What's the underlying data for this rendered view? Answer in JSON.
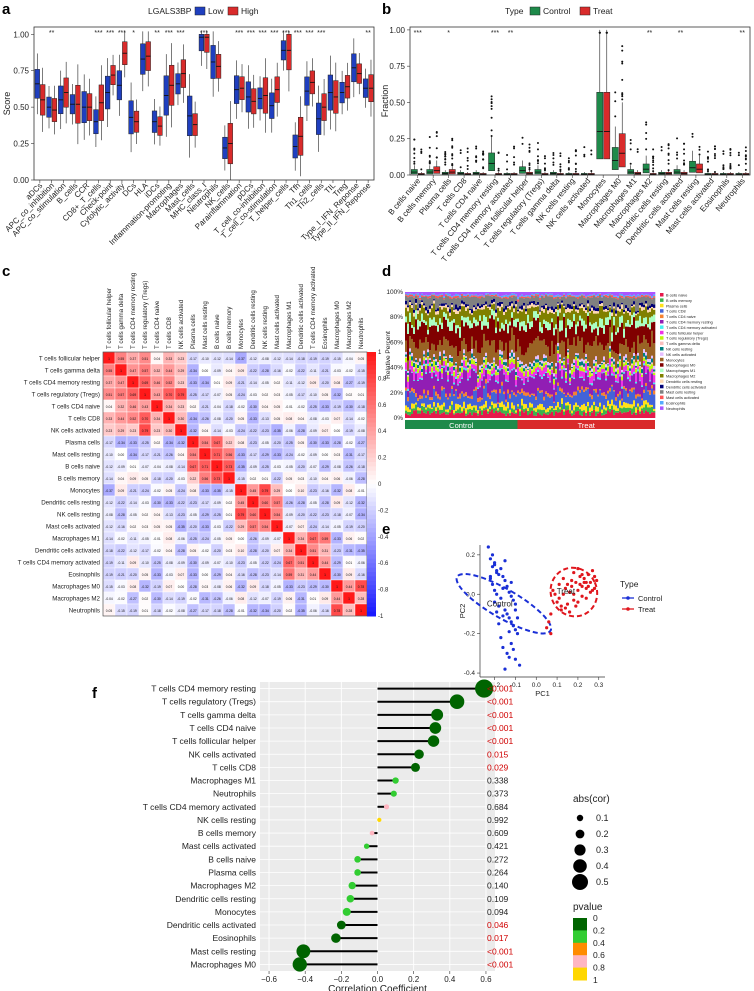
{
  "colors": {
    "low": "#1f3fbf",
    "high": "#d92b2b",
    "control": "#1e8a4a",
    "treat": "#d92b2b",
    "pca_control": "#1a2fd6",
    "pca_treat": "#e0161d",
    "stick": "#000000",
    "grid": "#ebebeb"
  },
  "panels": {
    "a": "a",
    "b": "b",
    "c": "c",
    "d": "d",
    "e": "e",
    "f": "f"
  },
  "chart_data": [
    {
      "id": "a",
      "type": "box",
      "title": "",
      "legend_title": "LGALS3BP",
      "legend": [
        "Low",
        "High"
      ],
      "ylabel": "Score",
      "ylim": [
        0,
        1.05
      ],
      "yticks": [
        "0.00",
        "0.25",
        "0.50",
        "0.75",
        "1.00"
      ],
      "ytick_values": [
        0,
        0.25,
        0.5,
        0.75,
        1.0
      ],
      "categories": [
        "aDCs",
        "APC_co_inhibition",
        "APC_co_stimulation",
        "B_cells",
        "CCR",
        "CD8+_T_cells",
        "Check-point",
        "Cytolytic_activity",
        "DCs",
        "HLA",
        "iDCs",
        "Inflammation-promoting",
        "Macrophages",
        "Mast_cells",
        "MHC_class_I",
        "Neutrophils",
        "NK_cells",
        "Parainflammation",
        "pDCs",
        "T_cell_co-inhibition",
        "T_cell_co-stimulation",
        "T_helper_cells",
        "Tfh",
        "Th1_cells",
        "Th2_cells",
        "TIL",
        "Treg",
        "Type_I_IFN_Reponse",
        "Type_II_IFN_Reponse"
      ],
      "significance": [
        "",
        "**",
        "",
        "",
        "",
        "***",
        "***",
        "***",
        "*",
        "",
        "**",
        "***",
        "***",
        "",
        "***",
        "",
        "",
        "***",
        "***",
        "***",
        "***",
        "***",
        "***",
        "***",
        "***",
        "",
        "",
        "",
        "**"
      ],
      "series": [
        {
          "name": "Low",
          "medians": [
            0.66,
            0.5,
            0.55,
            0.52,
            0.5,
            0.4,
            0.6,
            0.65,
            0.43,
            0.83,
            0.4,
            0.58,
            0.66,
            0.44,
            0.98,
            0.81,
            0.22,
            0.62,
            0.57,
            0.56,
            0.51,
            0.89,
            0.23,
            0.61,
            0.42,
            0.6,
            0.6,
            0.77,
            0.63
          ]
        },
        {
          "name": "High",
          "medians": [
            0.55,
            0.48,
            0.6,
            0.52,
            0.5,
            0.53,
            0.72,
            0.87,
            0.4,
            0.85,
            0.37,
            0.65,
            0.73,
            0.38,
            0.98,
            0.78,
            0.25,
            0.63,
            0.54,
            0.58,
            0.62,
            0.89,
            0.3,
            0.67,
            0.5,
            0.57,
            0.64,
            0.73,
            0.63
          ]
        }
      ]
    },
    {
      "id": "b",
      "type": "box",
      "legend_title": "Type",
      "legend": [
        "Control",
        "Treat"
      ],
      "ylabel": "Fraction",
      "ylim": [
        0,
        1.02
      ],
      "yticks": [
        "0.00",
        "0.25",
        "0.50",
        "0.75",
        "1.00"
      ],
      "ytick_values": [
        0,
        0.25,
        0.5,
        0.75,
        1.0
      ],
      "categories": [
        "B cells naive",
        "B cells memory",
        "Plasma cells",
        "T cells CD8",
        "T cells CD4 naive",
        "T cells CD4 memory resting",
        "T cells CD4 memory activated",
        "T cells follicular helper",
        "T cells regulatory (Tregs)",
        "T cells gamma delta",
        "NK cells resting",
        "NK cells activated",
        "Monocytes",
        "Macrophages M0",
        "Macrophages M1",
        "Macrophages M2",
        "Dendritic cells resting",
        "Dendritic cells activated",
        "Mast cells resting",
        "Mast cells activated",
        "Eosinophils",
        "Neutrophils"
      ],
      "significance": [
        "***",
        "",
        "*",
        "",
        "",
        "***",
        "**",
        "",
        "",
        "",
        "",
        "",
        "",
        "",
        "",
        "**",
        "",
        "**",
        "",
        "",
        "",
        "**"
      ],
      "series": [
        {
          "name": "Control",
          "medians": [
            0.02,
            0.02,
            0.01,
            0.01,
            0.01,
            0.08,
            0.005,
            0.03,
            0.02,
            0.01,
            0.005,
            0.005,
            0.3,
            0.1,
            0.02,
            0.04,
            0.01,
            0.02,
            0.05,
            0.005,
            0.005,
            0.005
          ]
        },
        {
          "name": "Treat",
          "medians": [
            0.005,
            0.03,
            0.02,
            0.005,
            0.005,
            0.005,
            0.005,
            0.01,
            0.005,
            0.005,
            0.005,
            0.005,
            0.3,
            0.15,
            0.01,
            0.005,
            0.01,
            0.01,
            0.04,
            0.005,
            0.005,
            0.005
          ]
        }
      ]
    },
    {
      "id": "c",
      "type": "heatmap",
      "legend_ticks": [
        "1",
        "0.8",
        "0.6",
        "0.4",
        "0.2",
        "0",
        "-0.2",
        "-0.4",
        "-0.6",
        "-0.8",
        "-1"
      ],
      "legend_values": [
        1,
        0.8,
        0.6,
        0.4,
        0.2,
        0,
        -0.2,
        -0.4,
        -0.6,
        -0.8,
        -1
      ],
      "labels": [
        "T cells follicular helper",
        "T cells gamma delta",
        "T cells CD4 memory resting",
        "T cells regulatory (Tregs)",
        "T cells CD4 naive",
        "T cells CD8",
        "NK cells activated",
        "Plasma cells",
        "Mast cells resting",
        "B cells naive",
        "B cells memory",
        "Monocytes",
        "Dendritic cells resting",
        "NK cells resting",
        "Mast cells activated",
        "Macrophages M1",
        "Dendritic cells activated",
        "T cells CD4 memory activated",
        "Eosinophils",
        "Macrophages M0",
        "Macrophages M2",
        "Neutrophils"
      ],
      "first_row": [
        "1",
        "0.55",
        "0.37",
        "0.51",
        "0.04",
        "0.33",
        "0.23",
        "-0.17",
        "-0.10",
        "-0.12",
        "-0.14",
        "-0.37",
        "-0.12",
        "-0.08",
        "-0.12",
        "-0.14",
        "-0.18",
        "-0.19",
        "-0.19",
        "-0.15",
        "-0.04",
        "0.05"
      ]
    },
    {
      "id": "d",
      "type": "stacked_bar",
      "ylabel": "Relative Percent",
      "yticks": [
        "0%",
        "20%",
        "40%",
        "60%",
        "80%",
        "100%"
      ],
      "ytick_values": [
        0,
        0.2,
        0.4,
        0.6,
        0.8,
        1.0
      ],
      "groups": [
        "Control",
        "Treat"
      ],
      "group_fraction": [
        0.45,
        0.55
      ],
      "legend": [
        "B cells naive",
        "B cells memory",
        "Plasma cells",
        "T cells CD8",
        "T cells CD4 naive",
        "T cells CD4 memory resting",
        "T cells CD4 memory activated",
        "T cells follicular helper",
        "T cells regulatory (Tregs)",
        "T cells gamma delta",
        "NK cells resting",
        "NK cells activated",
        "Monocytes",
        "Macrophages M0",
        "Macrophages M1",
        "Macrophages M2",
        "Dendritic cells resting",
        "Dendritic cells activated",
        "Mast cells resting",
        "Mast cells activated",
        "Eosinophils",
        "Neutrophils"
      ],
      "legend_colors": [
        "#e6194b",
        "#3cb44b",
        "#ffe119",
        "#4363d8",
        "#f58231",
        "#911eb4",
        "#46f0f0",
        "#f032e6",
        "#bcf60c",
        "#fabebe",
        "#008080",
        "#e6beff",
        "#9a6324",
        "#800000",
        "#aaffc3",
        "#808000",
        "#ffd8b1",
        "#000075",
        "#808080",
        "#ff5555",
        "#55aaff",
        "#aa55ff"
      ]
    },
    {
      "id": "e",
      "type": "scatter",
      "xlabel": "PC1",
      "ylabel": "PC2",
      "xlim": [
        -0.27,
        0.33
      ],
      "ylim": [
        -0.42,
        0.25
      ],
      "xticks": [
        "-0.2",
        "-0.1",
        "0.0",
        "0.1",
        "0.2",
        "0.3"
      ],
      "xtick_values": [
        -0.2,
        -0.1,
        0.0,
        0.1,
        0.2,
        0.3
      ],
      "yticks": [
        "0.2",
        "0.0",
        "-0.2",
        "-0.4"
      ],
      "ytick_values": [
        0.2,
        0.0,
        -0.2,
        -0.4
      ],
      "legend_title": "Type",
      "legend": [
        "Control",
        "Treat"
      ],
      "group_labels": [
        "Control",
        "Treat"
      ],
      "series": [
        {
          "name": "Control",
          "x": [
            -0.23,
            -0.22,
            -0.21,
            -0.2,
            -0.19,
            -0.18,
            -0.22,
            -0.21,
            -0.2,
            -0.19,
            -0.17,
            -0.16,
            -0.15,
            -0.14,
            -0.13,
            -0.12,
            -0.11,
            -0.1,
            -0.18,
            -0.17,
            -0.16,
            -0.15,
            -0.14,
            -0.13,
            -0.12,
            -0.11,
            -0.1,
            -0.09,
            -0.2,
            -0.19,
            -0.18,
            -0.17,
            -0.16,
            -0.14,
            -0.12,
            -0.1,
            -0.08,
            -0.15,
            -0.13,
            -0.11,
            -0.21,
            -0.2,
            -0.15,
            -0.12,
            -0.09,
            -0.1,
            -0.13,
            -0.16,
            -0.19,
            -0.22
          ],
          "y": [
            0.24,
            0.18,
            0.14,
            0.16,
            0.12,
            0.1,
            0.08,
            0.05,
            0.02,
            0.11,
            0.13,
            0.09,
            0.07,
            0.04,
            0.01,
            -0.01,
            -0.03,
            -0.05,
            -0.06,
            -0.02,
            0.03,
            -0.08,
            -0.1,
            -0.12,
            -0.14,
            -0.16,
            -0.18,
            -0.2,
            -0.04,
            -0.09,
            -0.15,
            -0.22,
            -0.27,
            -0.3,
            -0.25,
            -0.33,
            -0.36,
            -0.38,
            -0.32,
            -0.28,
            0.2,
            0.15,
            0.17,
            0.06,
            -0.12,
            -0.08,
            -0.19,
            -0.11,
            0.0,
            0.09
          ]
        },
        {
          "name": "Treat",
          "x": [
            0.05,
            0.07,
            0.08,
            0.1,
            0.11,
            0.12,
            0.13,
            0.14,
            0.15,
            0.16,
            0.17,
            0.18,
            0.19,
            0.2,
            0.21,
            0.22,
            0.23,
            0.24,
            0.25,
            0.26,
            0.27,
            0.28,
            0.29,
            0.12,
            0.14,
            0.16,
            0.18,
            0.2,
            0.22,
            0.24,
            0.26,
            0.15,
            0.17,
            0.19,
            0.21,
            0.23,
            0.25,
            0.27,
            0.06,
            0.07,
            0.09,
            0.11,
            0.13,
            0.18,
            0.2,
            0.22,
            0.24,
            0.28
          ],
          "y": [
            -0.17,
            -0.2,
            0.02,
            -0.04,
            -0.02,
            -0.06,
            0.0,
            0.03,
            -0.05,
            0.01,
            0.04,
            -0.03,
            0.06,
            0.02,
            0.05,
            -0.01,
            0.08,
            0.03,
            0.1,
            0.06,
            0.12,
            0.09,
            0.07,
            -0.08,
            -0.07,
            -0.09,
            0.0,
            -0.04,
            0.04,
            -0.02,
            0.01,
            0.05,
            0.07,
            -0.06,
            0.09,
            0.06,
            0.04,
            0.02,
            -0.14,
            -0.1,
            0.0,
            0.05,
            0.08,
            0.11,
            0.13,
            0.1,
            0.06,
            0.03
          ]
        }
      ]
    },
    {
      "id": "f",
      "type": "lollipop",
      "xlabel": "Correlation Coefficient",
      "xlim": [
        -0.65,
        0.65
      ],
      "xticks": [
        "−0.6",
        "−0.4",
        "−0.2",
        "0.0",
        "0.2",
        "0.4",
        "0.6"
      ],
      "xtick_values": [
        -0.6,
        -0.4,
        -0.2,
        0,
        0.2,
        0.4,
        0.6
      ],
      "size_legend_title": "abs(cor)",
      "size_legend": [
        "0.1",
        "0.2",
        "0.3",
        "0.4",
        "0.5"
      ],
      "size_values": [
        0.1,
        0.2,
        0.3,
        0.4,
        0.5
      ],
      "color_legend_title": "pvalue",
      "color_legend": [
        "0",
        "0.2",
        "0.4",
        "0.6",
        "0.8",
        "1"
      ],
      "color_values": [
        0,
        0.2,
        0.4,
        0.6,
        0.8,
        1
      ],
      "color_scale": [
        "#006400",
        "#32cd32",
        "#ff8c00",
        "#ffb6c1",
        "#ffd700"
      ],
      "categories": [
        "T cells CD4 memory resting",
        "T cells regulatory (Tregs)",
        "T cells gamma delta",
        "T cells CD4 naive",
        "T cells follicular helper",
        "NK cells activated",
        "T cells CD8",
        "Macrophages M1",
        "Neutrophils",
        "T cells CD4 memory activated",
        "NK cells resting",
        "B cells memory",
        "Mast cells activated",
        "B cells naive",
        "Plasma cells",
        "Macrophages M2",
        "Dendritic cells resting",
        "Monocytes",
        "Dendritic cells activated",
        "Eosinophils",
        "Mast cells resting",
        "Macrophages M0"
      ],
      "values": [
        0.59,
        0.44,
        0.33,
        0.32,
        0.31,
        0.23,
        0.21,
        0.1,
        0.09,
        0.05,
        0.01,
        -0.03,
        -0.06,
        -0.11,
        -0.11,
        -0.14,
        -0.15,
        -0.17,
        -0.2,
        -0.23,
        -0.41,
        -0.43
      ],
      "pvalue_labels": [
        "<0.001",
        "<0.001",
        "<0.001",
        "<0.001",
        "<0.001",
        "0.015",
        "0.029",
        "0.338",
        "0.373",
        "0.684",
        "0.992",
        "0.609",
        "0.421",
        "0.272",
        "0.264",
        "0.140",
        "0.109",
        "0.094",
        "0.046",
        "0.017",
        "<0.001",
        "<0.001"
      ],
      "pvalues": [
        0.0005,
        0.0005,
        0.0005,
        0.0005,
        0.0005,
        0.015,
        0.029,
        0.338,
        0.373,
        0.684,
        0.992,
        0.609,
        0.421,
        0.272,
        0.264,
        0.14,
        0.109,
        0.094,
        0.046,
        0.017,
        0.0005,
        0.0005
      ]
    }
  ]
}
